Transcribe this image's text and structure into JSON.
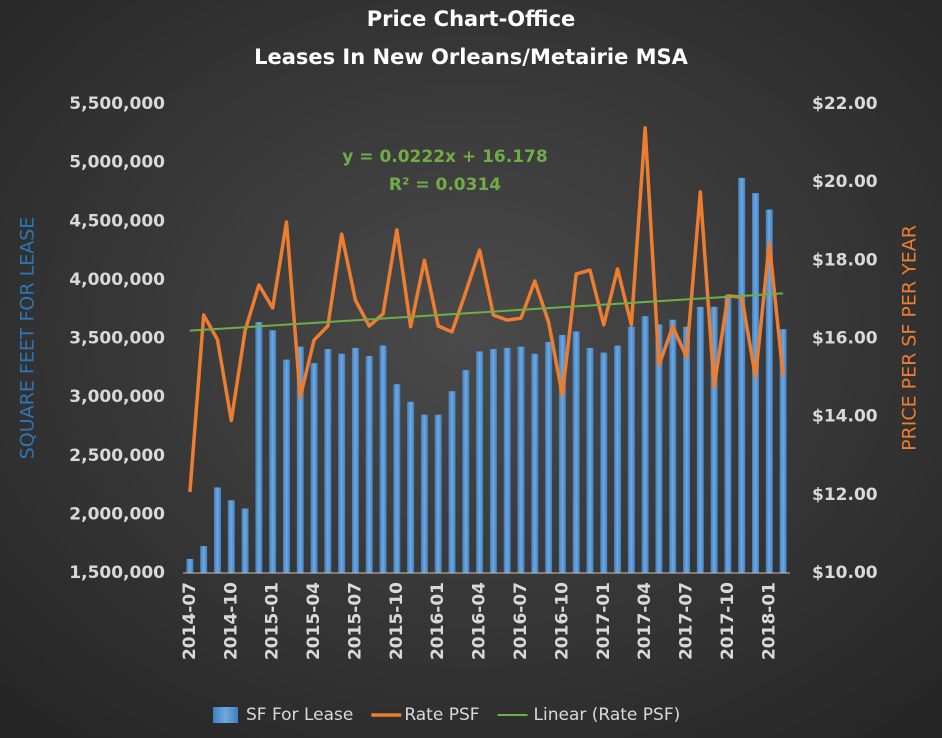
{
  "chart_data": {
    "type": "bar-line",
    "title": "Price Chart-Office",
    "subtitle": "Leases In New Orleans/Metairie MSA",
    "y_label": "SQUARE FEET FOR LEASE",
    "y2_label": "PRICE PER SF PER YEAR",
    "annotations": [
      "y = 0.0222x + 16.178",
      "R² = 0.0314"
    ],
    "categories": [
      "2014-07",
      null,
      null,
      "2014-10",
      null,
      null,
      "2015-01",
      null,
      null,
      "2015-04",
      null,
      null,
      "2015-07",
      null,
      null,
      "2015-10",
      null,
      null,
      "2016-01",
      null,
      null,
      "2016-04",
      null,
      null,
      "2016-07",
      null,
      null,
      "2016-10",
      null,
      null,
      "2017-01",
      null,
      null,
      "2017-04",
      null,
      null,
      "2017-07",
      null,
      null,
      "2017-10",
      null,
      null,
      "2018-01",
      null
    ],
    "series": [
      {
        "name": "SF For Lease",
        "type": "bar",
        "color": "#5b9bd5",
        "values": [
          1620000,
          1730000,
          2230000,
          2120000,
          2050000,
          3640000,
          3570000,
          3320000,
          3430000,
          3290000,
          3410000,
          3370000,
          3420000,
          3350000,
          3440000,
          3110000,
          2960000,
          2850000,
          2850000,
          3050000,
          3230000,
          3390000,
          3410000,
          3420000,
          3430000,
          3370000,
          3470000,
          3530000,
          3560000,
          3420000,
          3380000,
          3440000,
          3600000,
          3690000,
          3620000,
          3660000,
          3600000,
          3770000,
          3770000,
          3870000,
          4870000,
          4740000,
          4600000,
          3580000
        ]
      },
      {
        "name": "Rate PSF",
        "type": "line",
        "axis": "y2",
        "color": "#ed7d31",
        "values": [
          12.07,
          16.6,
          15.97,
          13.9,
          16.2,
          17.37,
          16.78,
          18.98,
          14.5,
          15.96,
          16.32,
          18.67,
          16.98,
          16.32,
          16.63,
          18.78,
          16.3,
          18.0,
          16.32,
          16.17,
          17.19,
          18.26,
          16.6,
          16.47,
          16.52,
          17.47,
          16.42,
          14.55,
          17.65,
          17.75,
          16.35,
          17.78,
          16.35,
          21.39,
          15.32,
          16.3,
          15.53,
          19.75,
          14.76,
          17.09,
          17.06,
          15.02,
          18.44,
          15.04
        ]
      }
    ],
    "trendline": {
      "name": "Linear (Rate PSF)",
      "color": "#70ad47",
      "slope": 0.0222,
      "intercept": 16.178
    },
    "ylim": [
      1500000,
      5500000
    ],
    "yticks": [
      {
        "value": 1500000,
        "label": "1,500,000"
      },
      {
        "value": 2000000,
        "label": "2,000,000"
      },
      {
        "value": 2500000,
        "label": "2,500,000"
      },
      {
        "value": 3000000,
        "label": "3,000,000"
      },
      {
        "value": 3500000,
        "label": "3,500,000"
      },
      {
        "value": 4000000,
        "label": "4,000,000"
      },
      {
        "value": 4500000,
        "label": "4,500,000"
      },
      {
        "value": 5000000,
        "label": "5,000,000"
      },
      {
        "value": 5500000,
        "label": "5,500,000"
      }
    ],
    "y2lim": [
      10,
      22
    ],
    "y2ticks": [
      {
        "value": 10,
        "label": "$10.00"
      },
      {
        "value": 12,
        "label": "$12.00"
      },
      {
        "value": 14,
        "label": "$14.00"
      },
      {
        "value": 16,
        "label": "$16.00"
      },
      {
        "value": 18,
        "label": "$18.00"
      },
      {
        "value": 20,
        "label": "$20.00"
      },
      {
        "value": 22,
        "label": "$22.00"
      }
    ],
    "grid": false,
    "legend": "bottom"
  }
}
